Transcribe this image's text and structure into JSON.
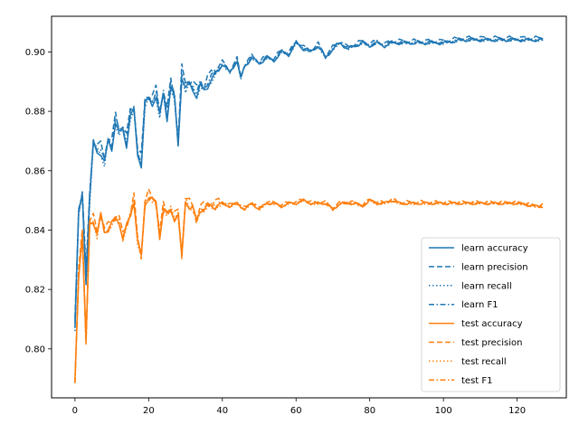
{
  "chart_data": {
    "type": "line",
    "title": "",
    "xlabel": "",
    "ylabel": "",
    "xlim": [
      -6.35,
      133.35
    ],
    "ylim": [
      0.7835,
      0.912
    ],
    "xticks": [
      0,
      20,
      40,
      60,
      80,
      100,
      120
    ],
    "yticks": [
      0.8,
      0.82,
      0.84,
      0.86,
      0.88,
      0.9
    ],
    "xtick_labels": [
      "0",
      "20",
      "40",
      "60",
      "80",
      "100",
      "120"
    ],
    "ytick_labels": [
      "0.80",
      "0.82",
      "0.84",
      "0.86",
      "0.88",
      "0.90"
    ],
    "grid": false,
    "legend": "lower-right",
    "colors": {
      "learn": "#1f77b4",
      "test": "#ff7f0e"
    },
    "learn_anchors": {
      "x": [
        0,
        1,
        2,
        3,
        4,
        5,
        6,
        7,
        8,
        9,
        10,
        11,
        12,
        13,
        14,
        15,
        16,
        17,
        18,
        19,
        20,
        21,
        22,
        23,
        24,
        25,
        26,
        27,
        28,
        29,
        30,
        31,
        32,
        33,
        34,
        35,
        36,
        38,
        40,
        42,
        44,
        45,
        46,
        48,
        50,
        52,
        54,
        56,
        58,
        60,
        62,
        64,
        66,
        68,
        70,
        72,
        74,
        76,
        78,
        80,
        82,
        84,
        86,
        88,
        90,
        95,
        100,
        105,
        110,
        115,
        120,
        125,
        127
      ],
      "y": [
        0.807,
        0.845,
        0.852,
        0.823,
        0.85,
        0.869,
        0.867,
        0.866,
        0.862,
        0.87,
        0.868,
        0.876,
        0.872,
        0.874,
        0.869,
        0.878,
        0.88,
        0.866,
        0.862,
        0.882,
        0.884,
        0.883,
        0.885,
        0.878,
        0.886,
        0.878,
        0.888,
        0.884,
        0.869,
        0.892,
        0.887,
        0.889,
        0.888,
        0.885,
        0.888,
        0.887,
        0.889,
        0.892,
        0.896,
        0.893,
        0.897,
        0.891,
        0.895,
        0.898,
        0.896,
        0.898,
        0.897,
        0.9,
        0.899,
        0.903,
        0.901,
        0.9,
        0.902,
        0.898,
        0.901,
        0.903,
        0.901,
        0.902,
        0.903,
        0.902,
        0.903,
        0.902,
        0.903,
        0.903,
        0.903,
        0.903,
        0.903,
        0.904,
        0.904,
        0.904,
        0.904,
        0.904,
        0.904
      ]
    },
    "test_anchors": {
      "x": [
        0,
        1,
        2,
        3,
        4,
        5,
        6,
        7,
        8,
        9,
        10,
        11,
        12,
        13,
        14,
        15,
        16,
        17,
        18,
        19,
        20,
        21,
        22,
        23,
        24,
        25,
        26,
        27,
        28,
        29,
        30,
        31,
        32,
        33,
        34,
        35,
        36,
        38,
        40,
        42,
        44,
        46,
        48,
        50,
        52,
        54,
        56,
        58,
        60,
        62,
        64,
        66,
        68,
        70,
        72,
        74,
        76,
        78,
        80,
        82,
        84,
        86,
        88,
        90,
        95,
        100,
        105,
        110,
        115,
        120,
        125,
        127
      ],
      "y": [
        0.789,
        0.825,
        0.838,
        0.802,
        0.843,
        0.843,
        0.838,
        0.845,
        0.84,
        0.84,
        0.842,
        0.844,
        0.843,
        0.837,
        0.841,
        0.845,
        0.85,
        0.836,
        0.831,
        0.849,
        0.851,
        0.85,
        0.849,
        0.838,
        0.847,
        0.845,
        0.847,
        0.844,
        0.845,
        0.831,
        0.85,
        0.848,
        0.847,
        0.843,
        0.847,
        0.847,
        0.848,
        0.848,
        0.849,
        0.848,
        0.849,
        0.847,
        0.849,
        0.847,
        0.849,
        0.849,
        0.848,
        0.849,
        0.849,
        0.85,
        0.849,
        0.849,
        0.849,
        0.847,
        0.849,
        0.849,
        0.849,
        0.848,
        0.85,
        0.849,
        0.849,
        0.85,
        0.849,
        0.849,
        0.849,
        0.849,
        0.849,
        0.849,
        0.849,
        0.849,
        0.848,
        0.848
      ]
    },
    "series": [
      {
        "name": "learn accuracy",
        "group": "learn",
        "style": "solid",
        "offset": 0.0,
        "jitter": 0.0015
      },
      {
        "name": "learn precision",
        "group": "learn",
        "style": "dashed",
        "offset": 0.002,
        "jitter": 0.002
      },
      {
        "name": "learn recall",
        "group": "learn",
        "style": "dotted",
        "offset": 0.0,
        "jitter": 0.001
      },
      {
        "name": "learn F1",
        "group": "learn",
        "style": "dashdot",
        "offset": 0.001,
        "jitter": 0.0015
      },
      {
        "name": "test accuracy",
        "group": "test",
        "style": "solid",
        "offset": 0.0,
        "jitter": 0.0012
      },
      {
        "name": "test precision",
        "group": "test",
        "style": "dashed",
        "offset": 0.001,
        "jitter": 0.0018
      },
      {
        "name": "test recall",
        "group": "test",
        "style": "dotted",
        "offset": 0.0,
        "jitter": 0.001
      },
      {
        "name": "test F1",
        "group": "test",
        "style": "dashdot",
        "offset": 0.0,
        "jitter": 0.0012
      }
    ]
  }
}
